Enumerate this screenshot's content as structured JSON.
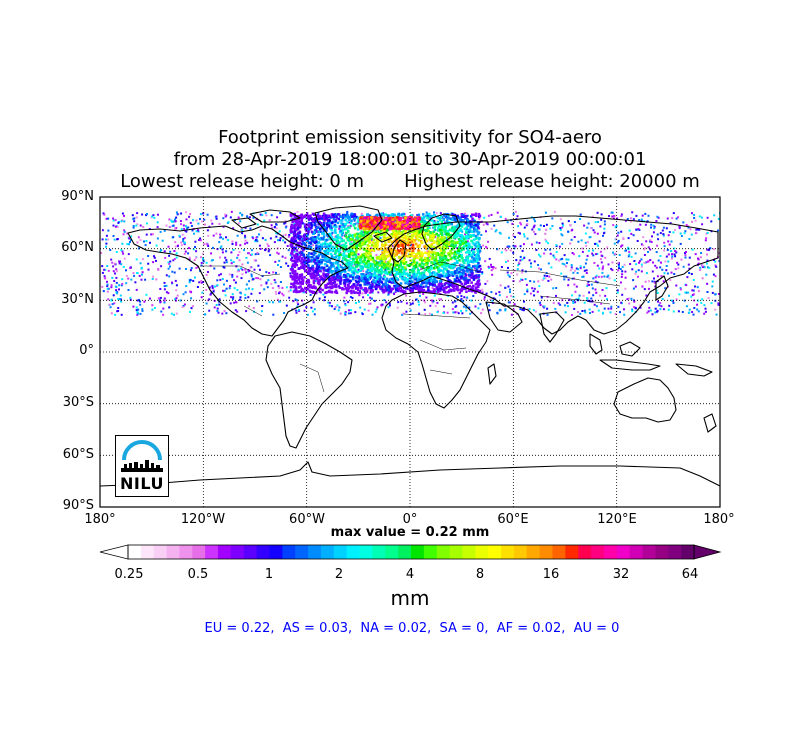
{
  "title": {
    "line1": "Footprint emission sensitivity for SO4-aero",
    "line2": "from 28-Apr-2019 18:00:01 to 30-Apr-2019 00:00:01",
    "line3": "Lowest release height: 0 m       Highest release height: 20000 m"
  },
  "map": {
    "lat_labels": [
      "90°N",
      "60°N",
      "30°N",
      "0°",
      "30°S",
      "60°S",
      "90°S"
    ],
    "lon_labels": [
      "180°",
      "120°W",
      "60°W",
      "0°",
      "60°E",
      "120°E",
      "180°"
    ],
    "lat_range": [
      -90,
      90
    ],
    "lon_range": [
      -180,
      180
    ],
    "grid": "dotted",
    "max_value_text": "max value = 0.22 mm"
  },
  "colorbar": {
    "tick_labels": [
      "0.25",
      "0.5",
      "1",
      "2",
      "4",
      "8",
      "16",
      "32",
      "64"
    ],
    "unit": "mm",
    "colors": [
      "#ffffff",
      "#fde6fa",
      "#f9cff6",
      "#f4b2f0",
      "#ee92eb",
      "#e66ee6",
      "#cc33ff",
      "#a200ff",
      "#8000ff",
      "#5b00ff",
      "#3300ff",
      "#1400ff",
      "#0040ff",
      "#0066ff",
      "#008cff",
      "#00b0ff",
      "#00d2ff",
      "#00f0ff",
      "#00ffe0",
      "#00ffb4",
      "#00ff8c",
      "#00f060",
      "#00e600",
      "#40ff00",
      "#80ff00",
      "#a6ff00",
      "#c8ff00",
      "#eaff00",
      "#ffff00",
      "#ffe000",
      "#ffc800",
      "#ffa800",
      "#ff8c00",
      "#ff6400",
      "#ff2800",
      "#ff0050",
      "#ff0080",
      "#ff00aa",
      "#f000c8",
      "#d200b4",
      "#b4009a",
      "#960082",
      "#800080",
      "#64006a"
    ]
  },
  "regions_text": "EU = 0.22,  AS = 0.03,  NA = 0.02,  SA = 0,  AF = 0.02,  AU = 0",
  "logo": {
    "text": "NILU",
    "accent": "#1aa7e0"
  }
}
